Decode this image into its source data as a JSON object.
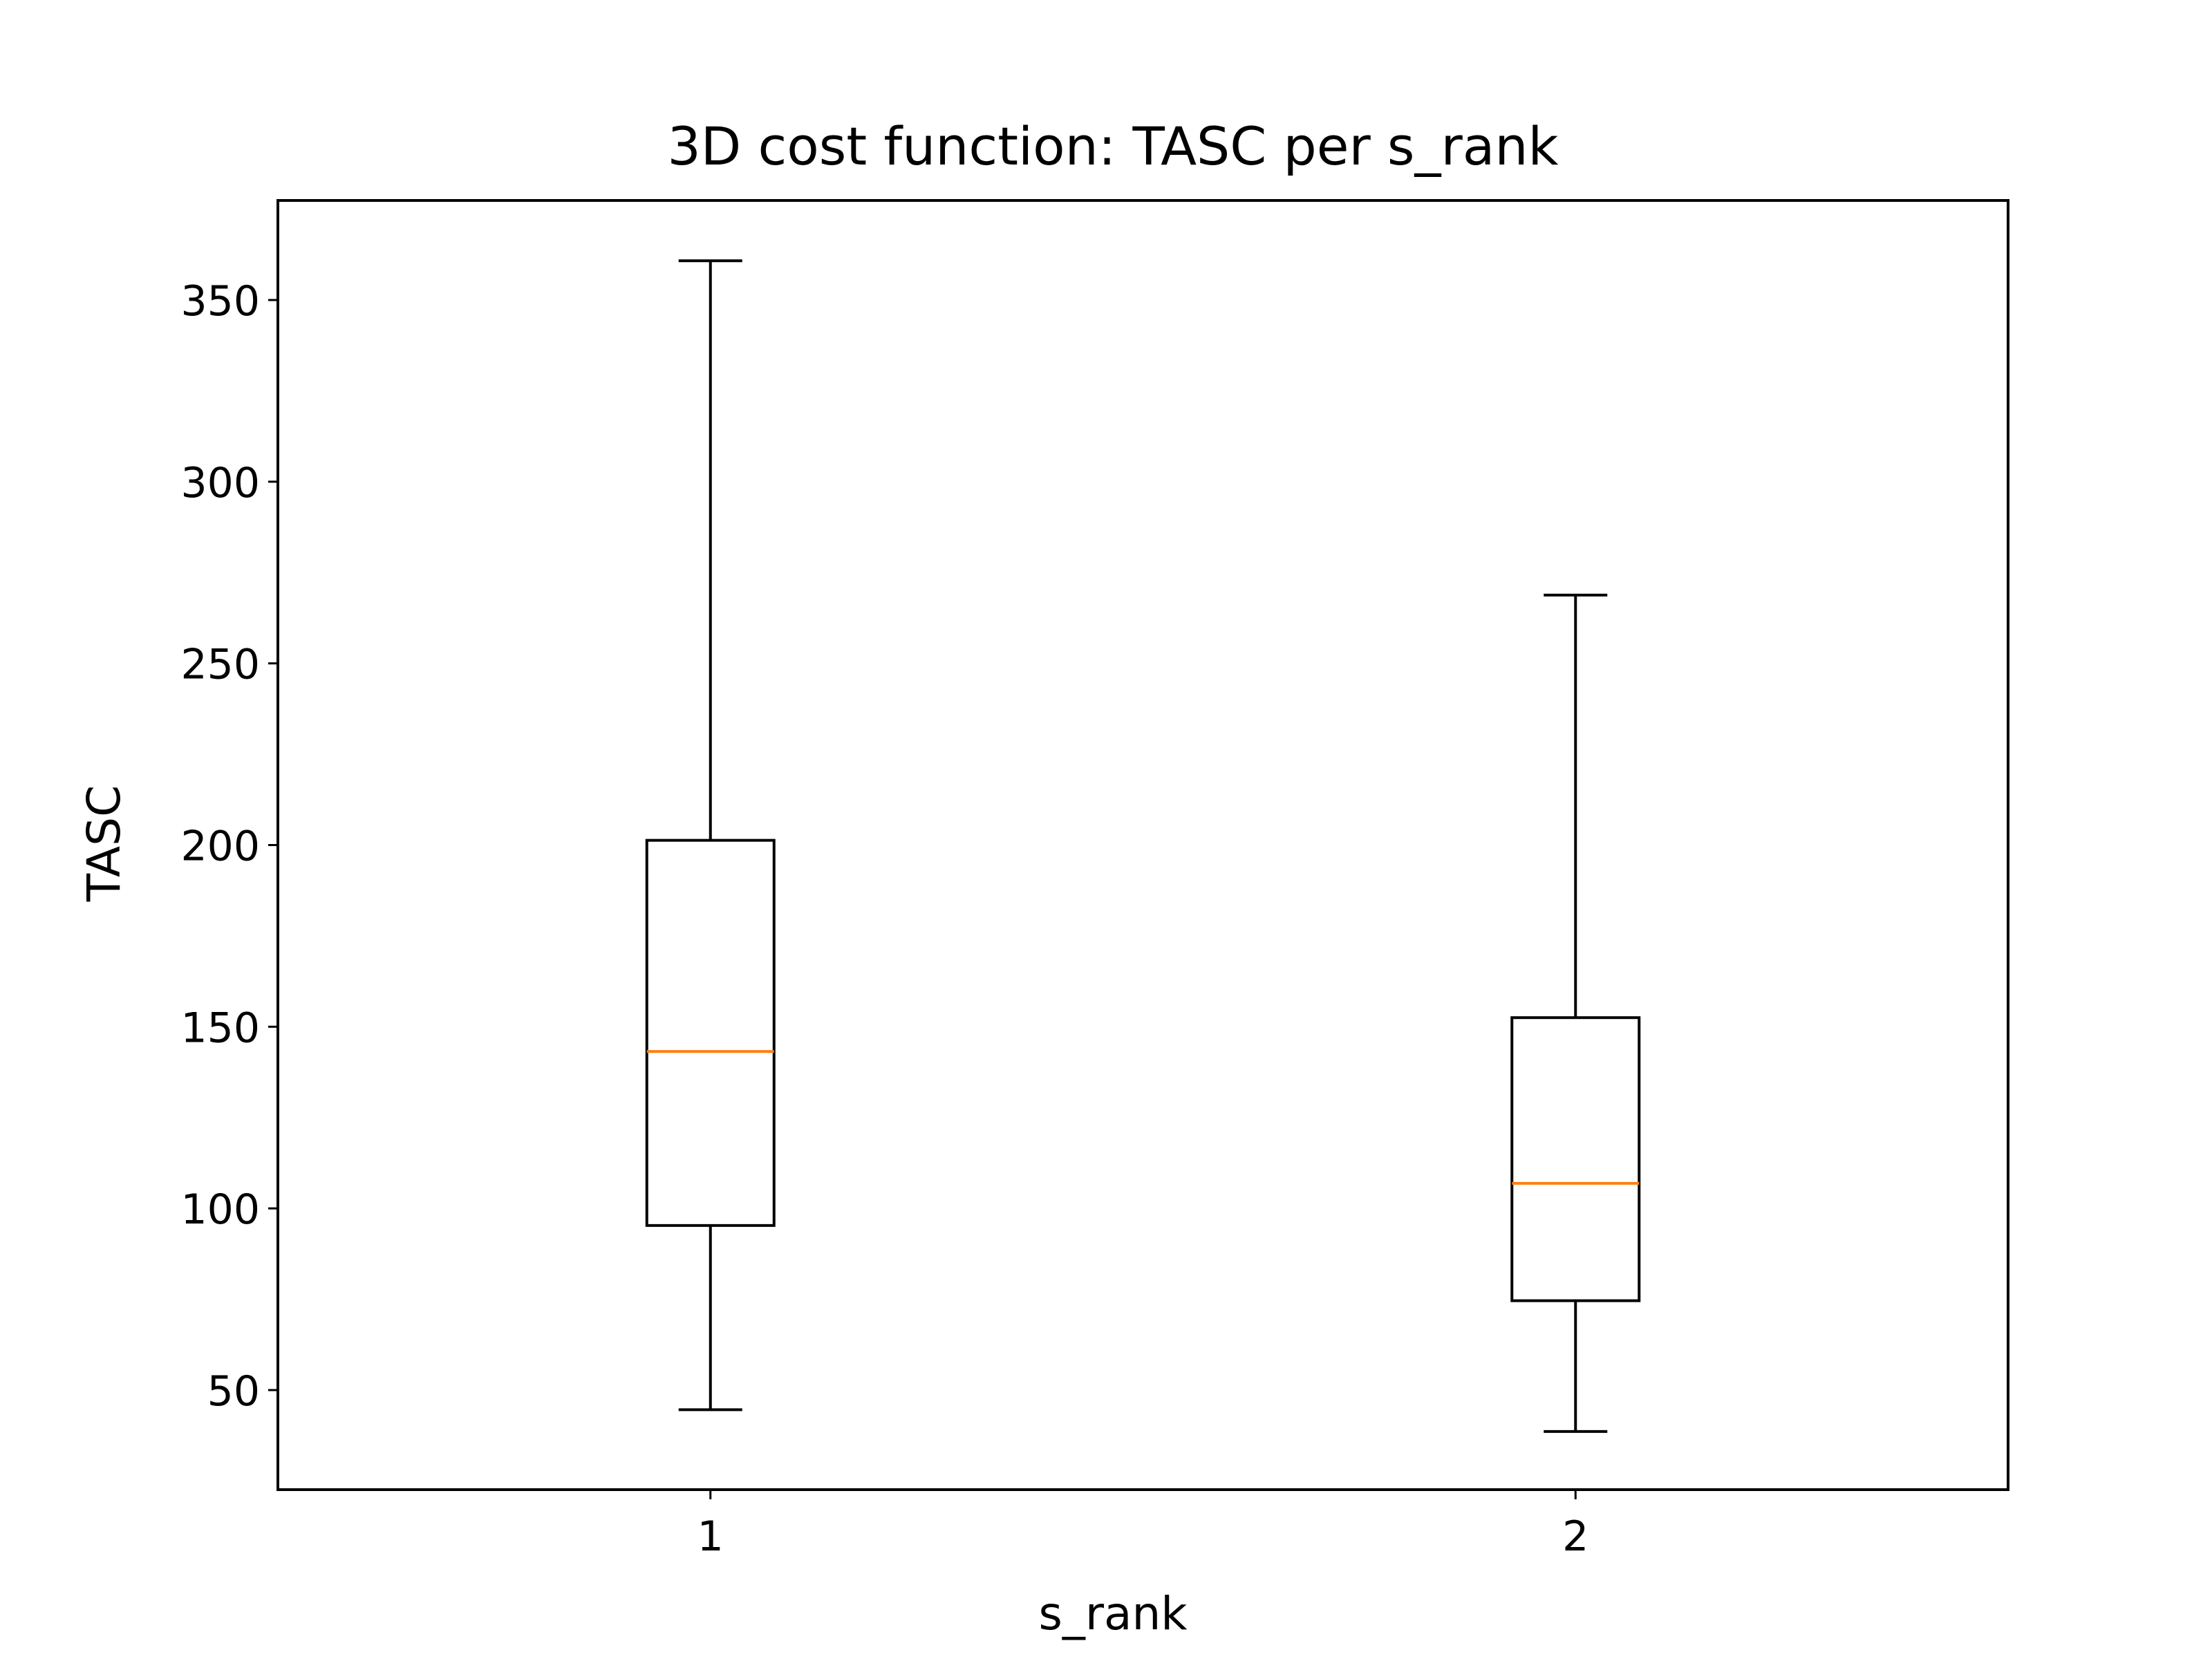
{
  "chart_data": {
    "type": "box",
    "title": "3D cost function: TASC per s_rank",
    "xlabel": "s_rank",
    "ylabel": "TASC",
    "categories": [
      "1",
      "2"
    ],
    "ylim": [
      22.6,
      377.4
    ],
    "yticks": [
      50,
      100,
      150,
      200,
      250,
      300,
      350
    ],
    "grid": false,
    "boxes": [
      {
        "category": "1",
        "whisker_low": 44.6,
        "q1": 95.3,
        "median": 143.2,
        "q3": 201.3,
        "whisker_high": 360.8
      },
      {
        "category": "2",
        "whisker_low": 38.6,
        "q1": 74.6,
        "median": 106.9,
        "q3": 152.5,
        "whisker_high": 268.8
      }
    ],
    "colors": {
      "box": "#000000",
      "median": "#ff7f0e"
    }
  }
}
